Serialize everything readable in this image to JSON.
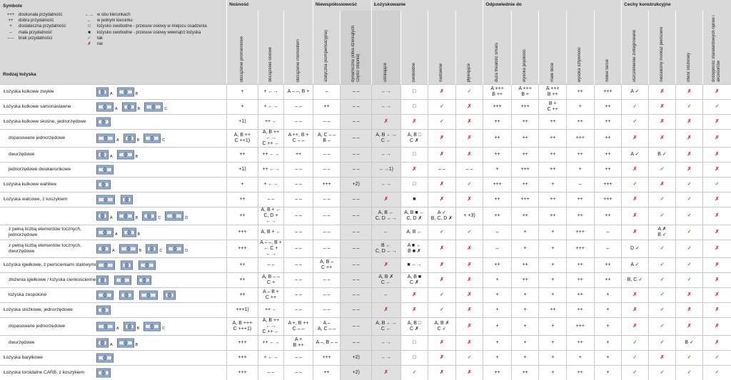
{
  "symbols": {
    "title": "Symbole",
    "left": [
      {
        "key": "+++",
        "text": "doskonała przydatność"
      },
      {
        "key": "++",
        "text": "dobra przydatność"
      },
      {
        "key": "+",
        "text": "dostateczna przydatność"
      },
      {
        "key": "–",
        "text": "mała przydatność"
      },
      {
        "key": "– –",
        "text": "brak przydatności"
      }
    ],
    "right": [
      {
        "key": "←→",
        "text": "w obu kierunkach"
      },
      {
        "key": "←",
        "text": "w jednym kierunku"
      },
      {
        "key": "□",
        "text": "łożysko swobodne - przesuw osiowy w miejscu osadzenia"
      },
      {
        "key": "■",
        "text": "łożysko swobodne - przesuw osiowy wewnątrz łożyska"
      },
      {
        "key": "✓",
        "text": "tak",
        "cls": "ok"
      },
      {
        "key": "✗",
        "text": "nie",
        "cls": "no"
      }
    ]
  },
  "row_header": "Rodzaj łożyska",
  "groups": [
    {
      "label": "Nośność",
      "span": 3
    },
    {
      "label": "Niewspółosiowość",
      "span": 2
    },
    {
      "label": "Łożyskowanie",
      "span": 4
    },
    {
      "label": "Odpowiednie do",
      "span": 5
    },
    {
      "label": "Cechy konstrukcyjne",
      "span": 4
    }
  ],
  "columns": [
    "obciążenie promieniowe",
    "obciążenie osiowe",
    "obciążenie momentem",
    "statyczna (kompensacyjna)",
    "dynamiczna (kilka dziesiątych części stopnia)",
    "ustalające",
    "swobodne",
    "nastawne",
    "pływające",
    "duża trwałość smaru",
    "wysoka prędkość",
    "małe bicie",
    "wysoka sztywność",
    "niskie tarcie",
    "uszczelnienie zintegrowane",
    "niezależny montaż pierścieni",
    "otwór stożkowy",
    "dostępność standardowych opraw i akcesoriów"
  ],
  "rows": [
    {
      "name": "Łożyska kulkowe zwykłe",
      "sub": false,
      "icons": [
        "A",
        "B"
      ],
      "cells": [
        "+",
        "+ ←→",
        "A – –, B +",
        "–",
        "– –",
        "←→",
        "□",
        "✗",
        "✓",
        "A +++\nB ++",
        "A +++\nB +",
        "A +++\nB ++",
        "++",
        "+++",
        "A ✓",
        "✗",
        "✗",
        "✗"
      ]
    },
    {
      "name": "Łożyska kulkowe samonastawne",
      "sub": false,
      "icons": [
        "A",
        "B",
        "C"
      ],
      "cells": [
        "+",
        "+ ←→",
        "– –",
        "++",
        "– –",
        "←→",
        "□",
        "✓",
        "✗",
        "+++",
        "+++",
        "B +\nC ++",
        "+",
        "++",
        "✓",
        "✗",
        "✓",
        "✓"
      ]
    },
    {
      "name": "Łożyska kulkowe skośne, jednorzędowe",
      "sub": false,
      "icons": [
        ""
      ],
      "cells": [
        "+1)",
        "++ ←",
        "– –",
        "– –",
        "– –",
        "✗",
        "✗",
        "✓",
        "✗",
        "++",
        "++",
        "++",
        "++",
        "++",
        "✓",
        "✗",
        "✗",
        "✗"
      ]
    },
    {
      "name": "dopasowane jednorzędowe",
      "sub": true,
      "icons": [
        "A",
        "B",
        "C"
      ],
      "cells": [
        "A, B ++\nC ++1)",
        "A, B ++ ←→\nC ++ ←",
        "A ++, B +\nC – –",
        "A, C – –\nB –",
        "– –",
        "A, B ←→\nC ←",
        "A, B □\nC ✗",
        "✗",
        "✗",
        "++",
        "++",
        "++",
        "+++",
        "++",
        "✗",
        "✗",
        "✗",
        "✗"
      ]
    },
    {
      "name": "dwurzędowe",
      "sub": true,
      "icons": [
        "A",
        "B"
      ],
      "cells": [
        "++",
        "++ ←→",
        "++",
        "– –",
        "– –",
        "←→",
        "□",
        "✗",
        "✗",
        "++",
        "++",
        "++",
        "++",
        "++",
        "A ✓",
        "B ✓",
        "✗",
        "✗"
      ]
    },
    {
      "name": "jednorzędowe dwukierunkowe",
      "sub": true,
      "icons": [
        ""
      ],
      "cells": [
        "+1)",
        "++ ←→",
        "– –",
        "– –",
        "– –",
        "←→1)",
        "✗",
        "– –",
        "– –",
        "+",
        "+++",
        "++",
        "+",
        "++",
        "✗",
        "✓",
        "✗",
        "✗"
      ]
    },
    {
      "name": "Łożyska kulkowe wahliwe",
      "sub": false,
      "icons": [
        ""
      ],
      "cells": [
        "+",
        "+ ←→",
        "– –",
        "+++",
        "+2)",
        "←→",
        "□",
        "✗",
        "✓",
        "+++",
        "++",
        "+",
        "–",
        "+++",
        "✓",
        "✗",
        "✓",
        "✓"
      ]
    },
    {
      "name": "Łożyska walcowe, z koszykiem",
      "sub": false,
      "icons": [
        "",
        ""
      ],
      "cells": [
        "++",
        "– –",
        "– –",
        "– –",
        "– –",
        "✗",
        "■",
        "✗",
        "✗",
        "++",
        "+++",
        "++",
        "++",
        "+++",
        "✗",
        "✓",
        "✓",
        "✗"
      ]
    },
    {
      "name": "",
      "sub": true,
      "icons": [
        "A",
        "B",
        "C",
        "D"
      ],
      "cells": [
        "++",
        "A, B + ←\nC, D + ←→",
        "– –",
        "– –",
        "– –",
        "A, B ←\nC, D ←→",
        "A, B ■ ←\nC, D ✗",
        "A ✓\nB, C, D ✗",
        "+ +3)",
        "++",
        "++",
        "++",
        "++",
        "++",
        "✗",
        "✓",
        "✓",
        "✗"
      ]
    },
    {
      "name": "z pełną liczbą elementów tocznych, jednorzędowe",
      "sub": true,
      "icons": [
        "A",
        "B"
      ],
      "cells": [
        "+++",
        "A, B + ←",
        "– –",
        "– –",
        "– –",
        "←",
        "A, B ←",
        "✓",
        "✓",
        "–",
        "+",
        "+",
        "+++",
        "–",
        "✗",
        "A ✗\nB ✓",
        "✓",
        "✗"
      ]
    },
    {
      "name": "z pełną liczbą elementów tocznych, dwurzędowe",
      "sub": true,
      "icons": [
        "A",
        "B",
        "C",
        "D"
      ],
      "cells": [
        "+++",
        "A – –, B +\n← C + ←→",
        "– –",
        "– –",
        "– –",
        "B ←\nC, D ←→",
        "A ■ ←\nB ■ ✗",
        "✗",
        "✗",
        "–",
        "+",
        "+",
        "+++",
        "–",
        "D ✓",
        "✓",
        "✓",
        "✗"
      ]
    },
    {
      "name": "Łożyska igiełkowe, z pierścieniami stalowymi",
      "sub": false,
      "icons": [
        "",
        "",
        ""
      ],
      "cells": [
        "++",
        "– –",
        "– –",
        "A, B –\nC ++",
        "– –",
        "✗",
        "■ ←→",
        "✗",
        "✗",
        "++",
        "++",
        "+",
        "++",
        "++",
        "A ✓",
        "✓",
        "✓",
        "✗"
      ]
    },
    {
      "name": "złożenia igiełkowe / łożyska cienkościenne",
      "sub": true,
      "icons": [
        "",
        "",
        ""
      ],
      "cells": [
        "++",
        "A, B – –\nC +",
        "– –",
        "– –",
        "– –",
        "A, B ✗\nC ←",
        "A, B ■\nC ✗",
        "✗",
        "✗",
        "+",
        "++",
        "+",
        "++",
        "++",
        "B, C ✓",
        "✓",
        "✓",
        "✗"
      ]
    },
    {
      "name": "łożyska zespolone",
      "sub": true,
      "icons": [
        "",
        "",
        "",
        ""
      ],
      "cells": [
        "++",
        "A – B +\nC ++",
        "– –",
        "– –",
        "– –",
        "←",
        "✗",
        "✓",
        "✗",
        "+",
        "+",
        "+",
        "++",
        "+",
        "✗",
        "✓",
        "✗",
        "✗"
      ]
    },
    {
      "name": "Łożyska stożkowe, jednorzędowe",
      "sub": false,
      "icons": [
        ""
      ],
      "cells": [
        "+++1)",
        "++ ←",
        "– –",
        "– –",
        "– –",
        "✗",
        "✗",
        "✓",
        "✗",
        "+",
        "+",
        "++",
        "++",
        "+",
        "✗",
        "✓",
        "✗",
        "✗"
      ]
    },
    {
      "name": "dopasowane jednorzędowe",
      "sub": true,
      "icons": [
        "A",
        "B",
        "C"
      ],
      "cells": [
        "A, B +++\nC +++1)",
        "A, B ++ ←→\nC ++ ←",
        "A +, B ++\nC – –",
        "A –\nA, C – –",
        "– –",
        "A, B ←→\nC ←",
        "A, B □\nC ✗",
        "A, B ✗\nC ✓",
        "✗",
        "+",
        "+",
        "+",
        "+++",
        "+",
        "✗",
        "✓",
        "✗",
        "✗"
      ]
    },
    {
      "name": "dwurzędowe",
      "sub": true,
      "icons": [
        "A",
        "B"
      ],
      "cells": [
        "+++",
        "++ ←→",
        "A +\nB ++",
        "A –, B – –",
        "– –",
        "←→",
        "□",
        "✗",
        "✗",
        "+",
        "+",
        "+",
        "++",
        "+",
        "✓",
        "✓",
        "B ✓",
        "✗"
      ]
    },
    {
      "name": "Łożyska baryłkowe",
      "sub": false,
      "icons": [
        ""
      ],
      "cells": [
        "+++",
        "+ ←→",
        "– –",
        "+++",
        "+2)",
        "←→",
        "□",
        "✗",
        "✓",
        "+",
        "+",
        "+",
        "+",
        "+",
        "✓",
        "✗",
        "✓",
        "✓"
      ]
    },
    {
      "name": "Łożyska toroidalne CARB, z koszykiem",
      "sub": false,
      "icons": [
        ""
      ],
      "cells": [
        "+++",
        "– –",
        "– –",
        "++",
        "+2)",
        "✗",
        "✓",
        "✗",
        "✗",
        "++",
        "++",
        "+",
        "++",
        "+",
        "✓",
        "✓",
        "✓",
        "✓"
      ]
    }
  ]
}
